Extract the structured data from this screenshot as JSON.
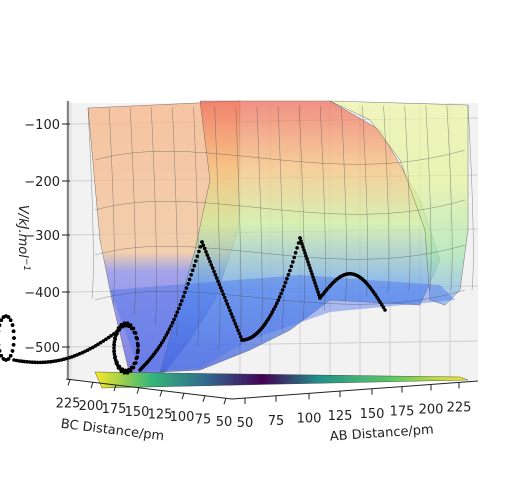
{
  "chart_data": {
    "type": "surface3d",
    "title": "",
    "xlabel": "AB Distance/pm",
    "ylabel": "BC Distance/pm",
    "zlabel": "V/kJ.mol",
    "zlabel_superscript": "−1",
    "x_ticks": [
      "50",
      "75",
      "100",
      "125",
      "150",
      "175",
      "200",
      "225"
    ],
    "y_ticks": [
      "225",
      "200",
      "175",
      "150",
      "125",
      "100",
      "75",
      "50"
    ],
    "z_ticks": [
      "−100",
      "−200",
      "−300",
      "−400",
      "−500"
    ],
    "x_range": [
      50,
      235
    ],
    "y_range": [
      50,
      235
    ],
    "z_range": [
      -560,
      -80
    ],
    "grid": true,
    "colormap": "jet",
    "floor_colormap": "viridis",
    "trajectory_color": "#000000",
    "trajectory_marker": "point"
  }
}
